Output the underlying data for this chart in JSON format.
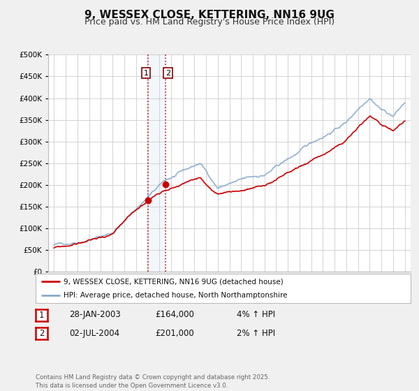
{
  "title": "9, WESSEX CLOSE, KETTERING, NN16 9UG",
  "subtitle": "Price paid vs. HM Land Registry's House Price Index (HPI)",
  "title_fontsize": 11,
  "subtitle_fontsize": 9,
  "bg_color": "#f0f0f0",
  "plot_bg_color": "#ffffff",
  "grid_color": "#cccccc",
  "red_line_color": "#cc0000",
  "blue_line_color": "#88aacc",
  "marker1_date_x": 2003.07,
  "marker2_date_x": 2004.54,
  "marker1_y": 164000,
  "marker2_y": 201000,
  "legend_label_red": "9, WESSEX CLOSE, KETTERING, NN16 9UG (detached house)",
  "legend_label_blue": "HPI: Average price, detached house, North Northamptonshire",
  "table_rows": [
    {
      "num": 1,
      "date": "28-JAN-2003",
      "price": "£164,000",
      "hpi": "4% ↑ HPI"
    },
    {
      "num": 2,
      "date": "02-JUL-2004",
      "price": "£201,000",
      "hpi": "2% ↑ HPI"
    }
  ],
  "copyright_text": "Contains HM Land Registry data © Crown copyright and database right 2025.\nThis data is licensed under the Open Government Licence v3.0.",
  "ylim": [
    0,
    500000
  ],
  "yticks": [
    0,
    50000,
    100000,
    150000,
    200000,
    250000,
    300000,
    350000,
    400000,
    450000,
    500000
  ],
  "xlim": [
    1994.5,
    2025.5
  ],
  "xticks": [
    1995,
    1996,
    1997,
    1998,
    1999,
    2000,
    2001,
    2002,
    2003,
    2004,
    2005,
    2006,
    2007,
    2008,
    2009,
    2010,
    2011,
    2012,
    2013,
    2014,
    2015,
    2016,
    2017,
    2018,
    2019,
    2020,
    2021,
    2022,
    2023,
    2024,
    2025
  ]
}
